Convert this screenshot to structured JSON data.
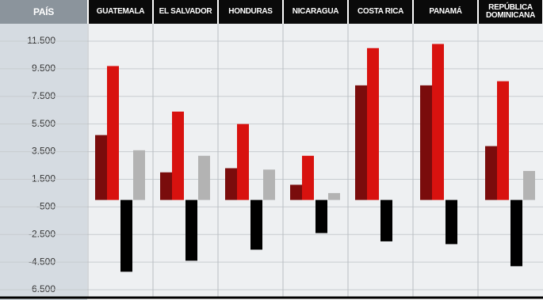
{
  "chart_data": {
    "type": "bar",
    "xlabel": "PAÍS",
    "categories": [
      "GUATEMALA",
      "EL SALVADOR",
      "HONDURAS",
      "NICARAGUA",
      "COSTA RICA",
      "PANAMÁ",
      "REPÚBLICA DOMINICANA"
    ],
    "series": [
      {
        "color": "#7a0c0c",
        "values": [
          4700,
          2000,
          2300,
          1100,
          8300,
          8300,
          3900
        ]
      },
      {
        "color": "#d8120f",
        "values": [
          9700,
          6400,
          5500,
          3200,
          11000,
          11300,
          8600
        ]
      },
      {
        "color": "#000000",
        "values": [
          -5200,
          -4400,
          -3600,
          -2400,
          -3000,
          -3200,
          -4800
        ]
      },
      {
        "color": "#b3b3b3",
        "values": [
          3600,
          3200,
          2200,
          500,
          null,
          null,
          2100
        ]
      }
    ],
    "ylim": [
      -7000,
      12500
    ],
    "yticks": [
      {
        "value": 11500,
        "label": "11.500"
      },
      {
        "value": 9500,
        "label": "9.500"
      },
      {
        "value": 7500,
        "label": "7.500"
      },
      {
        "value": 5500,
        "label": "5.500"
      },
      {
        "value": 3500,
        "label": "3.500"
      },
      {
        "value": 1500,
        "label": "1.500"
      },
      -500,
      {
        "value": -2500,
        "label": "-2.500"
      },
      {
        "value": -4500,
        "label": "-4.500"
      },
      {
        "value": -6500,
        "label": "-6.500"
      }
    ],
    "grid": true
  }
}
